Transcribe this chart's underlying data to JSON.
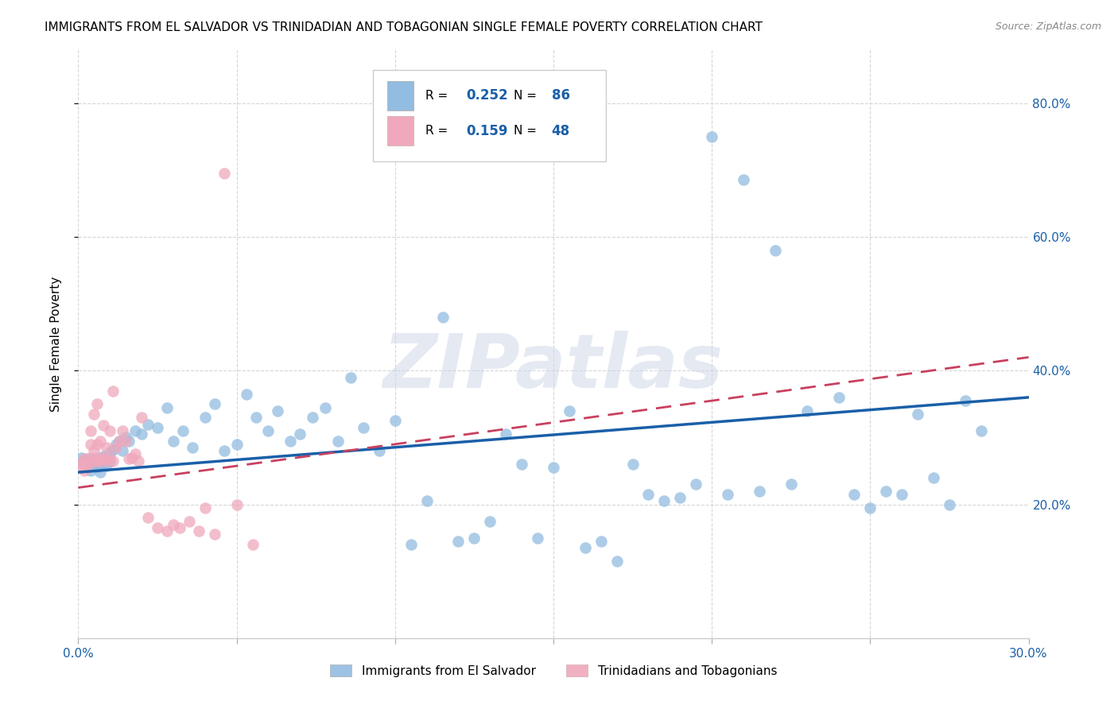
{
  "title": "IMMIGRANTS FROM EL SALVADOR VS TRINIDADIAN AND TOBAGONIAN SINGLE FEMALE POVERTY CORRELATION CHART",
  "source": "Source: ZipAtlas.com",
  "ylabel": "Single Female Poverty",
  "xlim": [
    0.0,
    0.3
  ],
  "ylim": [
    0.0,
    0.88
  ],
  "ytick_positions": [
    0.2,
    0.4,
    0.6,
    0.8
  ],
  "ytick_labels": [
    "20.0%",
    "40.0%",
    "60.0%",
    "80.0%"
  ],
  "legend1_label": "Immigrants from El Salvador",
  "legend2_label": "Trinidadians and Tobagonians",
  "R1": "0.252",
  "N1": "86",
  "R2": "0.159",
  "N2": "48",
  "blue_color": "#92bce0",
  "pink_color": "#f0a8bc",
  "trend_blue": "#1a5fa8",
  "trend_pink": "#c84060",
  "watermark": "ZIPatlas",
  "title_fontsize": 11,
  "axis_label_fontsize": 11,
  "tick_fontsize": 11,
  "blue_scatter_x": [
    0.001,
    0.002,
    0.002,
    0.003,
    0.003,
    0.004,
    0.004,
    0.005,
    0.005,
    0.006,
    0.006,
    0.007,
    0.007,
    0.008,
    0.008,
    0.009,
    0.009,
    0.01,
    0.01,
    0.011,
    0.012,
    0.013,
    0.014,
    0.015,
    0.016,
    0.018,
    0.02,
    0.022,
    0.025,
    0.028,
    0.03,
    0.033,
    0.036,
    0.04,
    0.043,
    0.046,
    0.05,
    0.053,
    0.056,
    0.06,
    0.063,
    0.067,
    0.07,
    0.074,
    0.078,
    0.082,
    0.086,
    0.09,
    0.095,
    0.1,
    0.105,
    0.11,
    0.115,
    0.12,
    0.125,
    0.13,
    0.135,
    0.14,
    0.145,
    0.15,
    0.155,
    0.16,
    0.165,
    0.17,
    0.175,
    0.18,
    0.185,
    0.19,
    0.195,
    0.2,
    0.205,
    0.21,
    0.215,
    0.22,
    0.225,
    0.23,
    0.24,
    0.245,
    0.25,
    0.255,
    0.26,
    0.265,
    0.27,
    0.275,
    0.28,
    0.285
  ],
  "blue_scatter_y": [
    0.27,
    0.265,
    0.26,
    0.268,
    0.255,
    0.262,
    0.25,
    0.265,
    0.258,
    0.255,
    0.27,
    0.262,
    0.248,
    0.272,
    0.26,
    0.268,
    0.258,
    0.278,
    0.265,
    0.282,
    0.29,
    0.295,
    0.28,
    0.3,
    0.295,
    0.31,
    0.305,
    0.32,
    0.315,
    0.345,
    0.295,
    0.31,
    0.285,
    0.33,
    0.35,
    0.28,
    0.29,
    0.365,
    0.33,
    0.31,
    0.34,
    0.295,
    0.305,
    0.33,
    0.345,
    0.295,
    0.39,
    0.315,
    0.28,
    0.325,
    0.14,
    0.205,
    0.48,
    0.145,
    0.15,
    0.175,
    0.305,
    0.26,
    0.15,
    0.255,
    0.34,
    0.135,
    0.145,
    0.115,
    0.26,
    0.215,
    0.205,
    0.21,
    0.23,
    0.75,
    0.215,
    0.685,
    0.22,
    0.58,
    0.23,
    0.34,
    0.36,
    0.215,
    0.195,
    0.22,
    0.215,
    0.335,
    0.24,
    0.2,
    0.355,
    0.31
  ],
  "pink_scatter_x": [
    0.001,
    0.001,
    0.002,
    0.002,
    0.002,
    0.003,
    0.003,
    0.004,
    0.004,
    0.004,
    0.005,
    0.005,
    0.005,
    0.006,
    0.006,
    0.006,
    0.007,
    0.007,
    0.007,
    0.008,
    0.008,
    0.009,
    0.009,
    0.01,
    0.01,
    0.011,
    0.011,
    0.012,
    0.013,
    0.014,
    0.015,
    0.016,
    0.017,
    0.018,
    0.019,
    0.02,
    0.022,
    0.025,
    0.028,
    0.03,
    0.032,
    0.035,
    0.038,
    0.04,
    0.043,
    0.046,
    0.05,
    0.055
  ],
  "pink_scatter_y": [
    0.262,
    0.255,
    0.268,
    0.26,
    0.25,
    0.265,
    0.255,
    0.29,
    0.31,
    0.27,
    0.335,
    0.28,
    0.265,
    0.35,
    0.29,
    0.265,
    0.268,
    0.295,
    0.265,
    0.318,
    0.27,
    0.285,
    0.265,
    0.31,
    0.27,
    0.37,
    0.265,
    0.285,
    0.295,
    0.31,
    0.295,
    0.268,
    0.27,
    0.275,
    0.265,
    0.33,
    0.18,
    0.165,
    0.16,
    0.17,
    0.165,
    0.175,
    0.16,
    0.195,
    0.155,
    0.695,
    0.2,
    0.14
  ],
  "blue_trendline_x": [
    0.0,
    0.3
  ],
  "blue_trendline_y": [
    0.248,
    0.36
  ],
  "pink_trendline_x": [
    0.0,
    0.3
  ],
  "pink_trendline_y": [
    0.225,
    0.42
  ]
}
